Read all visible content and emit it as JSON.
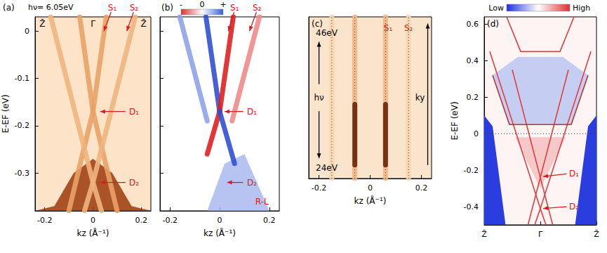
{
  "chart_data": [
    {
      "type": "line",
      "title": "(a)",
      "subtitle": "hν= 6.05eV",
      "xlabel": "kz (Å⁻¹)",
      "ylabel": "E-EF (eV)",
      "xlim": [
        -0.24,
        0.24
      ],
      "xticks": [
        -0.2,
        0,
        0.2
      ],
      "ylim": [
        -0.38,
        0.03
      ],
      "yticks": [
        -0.3,
        -0.2,
        -0.1,
        0
      ],
      "series": [
        {
          "type": "area",
          "x": [
            -0.24,
            -0.16,
            -0.08,
            0,
            0.08,
            0.16,
            0.24
          ],
          "values": [
            -0.38,
            -0.37,
            -0.3,
            -0.27,
            -0.3,
            -0.37,
            -0.38
          ],
          "color": "#9c3a0c"
        },
        {
          "type": "line",
          "x": [
            -0.055,
            0,
            0.1
          ],
          "values": [
            0.03,
            -0.17,
            -0.38
          ],
          "color": "#e9a266",
          "line_style": "broad"
        },
        {
          "type": "line",
          "x": [
            0.055,
            0,
            -0.1
          ],
          "values": [
            0.03,
            -0.17,
            -0.38
          ],
          "color": "#e9a266",
          "line_style": "broad"
        },
        {
          "type": "line",
          "x": [
            -0.175,
            0,
            0.035
          ],
          "values": [
            0.03,
            -0.32,
            -0.38
          ],
          "color": "#eeb47e",
          "line_style": "broad"
        },
        {
          "type": "line",
          "x": [
            0.175,
            0,
            -0.035
          ],
          "values": [
            0.03,
            -0.32,
            -0.38
          ],
          "color": "#eeb47e",
          "line_style": "broad"
        }
      ],
      "annotations": [
        {
          "text": "Z̄",
          "x": -0.21,
          "y": 0.015,
          "color": "#000000"
        },
        {
          "text": "Γ̄",
          "x": 0,
          "y": 0.015,
          "color": "#000000"
        },
        {
          "text": "Z̄",
          "x": 0.21,
          "y": 0.015,
          "color": "#000000"
        },
        {
          "text": "S₁",
          "x": 0.08,
          "y": 0.05,
          "color": "#d42020",
          "arrows": [
            [
              [
                0.075,
                0.04
              ],
              [
                0.045,
                0.0
              ]
            ]
          ]
        },
        {
          "text": "S₂",
          "x": 0.17,
          "y": 0.05,
          "color": "#d42020",
          "arrows": [
            [
              [
                0.168,
                0.04
              ],
              [
                0.14,
                0.0
              ]
            ]
          ]
        },
        {
          "text": "D₁",
          "x": 0.17,
          "y": -0.17,
          "color": "#d42020",
          "arrows": [
            [
              [
                0.135,
                -0.17
              ],
              [
                0.03,
                -0.17
              ]
            ]
          ]
        },
        {
          "text": "D₂",
          "x": 0.17,
          "y": -0.32,
          "color": "#d42020",
          "arrows": [
            [
              [
                0.135,
                -0.32
              ],
              [
                0.03,
                -0.32
              ]
            ]
          ]
        }
      ]
    },
    {
      "type": "line",
      "title": "(b)",
      "xlabel": "kz (Å⁻¹)",
      "xlim": [
        -0.24,
        0.24
      ],
      "xticks": [
        -0.2,
        0,
        0.2
      ],
      "ylim": [
        -0.38,
        0.03
      ],
      "yticks": [
        -0.3,
        -0.2,
        -0.1,
        0
      ],
      "tick_labels": "x",
      "colorbar": {
        "range": [
          -1,
          1
        ],
        "ticks": [
          {
            "value": -1,
            "label": "-"
          },
          0,
          {
            "value": 1,
            "label": "+"
          }
        ],
        "colors": [
          "#e03030",
          "#ffffff",
          "#3060e0"
        ]
      },
      "series": [
        {
          "type": "area",
          "x": [
            -0.05,
            0.02,
            0.1,
            0.2
          ],
          "values": [
            -0.38,
            -0.28,
            -0.26,
            -0.38
          ],
          "color": "#aab8ee"
        },
        {
          "type": "line",
          "x": [
            -0.055,
            0
          ],
          "values": [
            0.03,
            -0.17
          ],
          "color": "#3050d0",
          "line_style": "broad"
        },
        {
          "type": "line",
          "x": [
            0.055,
            0
          ],
          "values": [
            0.03,
            -0.17
          ],
          "color": "#e02020",
          "line_style": "broad"
        },
        {
          "type": "line",
          "x": [
            -0.16,
            -0.05
          ],
          "values": [
            0.03,
            -0.19
          ],
          "color": "#8fa3e8",
          "line_style": "broad"
        },
        {
          "type": "line",
          "x": [
            0.16,
            0.05
          ],
          "values": [
            0.03,
            -0.19
          ],
          "color": "#f08a8a",
          "line_style": "broad"
        },
        {
          "type": "line",
          "x": [
            0,
            -0.05
          ],
          "values": [
            -0.17,
            -0.26
          ],
          "color": "#e02020",
          "line_style": "broad"
        },
        {
          "type": "line",
          "x": [
            0,
            0.06
          ],
          "values": [
            -0.17,
            -0.28
          ],
          "color": "#3050d0",
          "line_style": "broad"
        }
      ],
      "annotations": [
        {
          "text": "S₁",
          "x": 0.06,
          "y": 0.05,
          "color": "#d42020",
          "arrows": [
            [
              [
                0.058,
                0.04
              ],
              [
                0.035,
                0.0
              ]
            ]
          ]
        },
        {
          "text": "S₂",
          "x": 0.15,
          "y": 0.05,
          "color": "#d42020",
          "arrows": [
            [
              [
                0.148,
                0.04
              ],
              [
                0.12,
                0.0
              ]
            ]
          ]
        },
        {
          "text": "D₁",
          "x": 0.13,
          "y": -0.17,
          "color": "#d42020",
          "arrows": [
            [
              [
                0.095,
                -0.17
              ],
              [
                0.02,
                -0.17
              ]
            ]
          ]
        },
        {
          "text": "D₂",
          "x": 0.13,
          "y": -0.32,
          "color": "#d42020",
          "arrows": [
            [
              [
                0.095,
                -0.32
              ],
              [
                0.03,
                -0.32
              ]
            ]
          ]
        },
        {
          "text": "R-L",
          "x": 0.17,
          "y": -0.36,
          "color": "#d42020"
        }
      ]
    },
    {
      "type": "line",
      "title": "(c)",
      "xlabel": "kz (Å⁻¹)",
      "xlim": [
        -0.24,
        0.24
      ],
      "xticks": [
        -0.2,
        0,
        0.2
      ],
      "ylim": [
        23,
        47
      ],
      "tick_labels": "x",
      "series": [
        {
          "type": "line",
          "x": [
            -0.15,
            -0.15
          ],
          "values": [
            23,
            47
          ],
          "color": "#f8d5b0",
          "line_style": "broad"
        },
        {
          "type": "line",
          "x": [
            0.15,
            0.15
          ],
          "values": [
            23,
            47
          ],
          "color": "#f8d5b0",
          "line_style": "broad"
        },
        {
          "type": "line",
          "x": [
            -0.06,
            -0.06
          ],
          "values": [
            23,
            47
          ],
          "color": "#f2b682",
          "line_style": "broad"
        },
        {
          "type": "line",
          "x": [
            0.06,
            0.06
          ],
          "values": [
            23,
            47
          ],
          "color": "#f2b682",
          "line_style": "broad"
        },
        {
          "type": "line",
          "x": [
            -0.06,
            -0.06
          ],
          "values": [
            25,
            34
          ],
          "color": "#6e2408",
          "line_style": "broad"
        },
        {
          "type": "line",
          "x": [
            0.06,
            0.06
          ],
          "values": [
            25,
            34
          ],
          "color": "#6e2408",
          "line_style": "broad"
        },
        {
          "type": "line",
          "x": [
            -0.15,
            -0.15
          ],
          "values": [
            23,
            47
          ],
          "color": "#444444",
          "line_style": "dotted"
        },
        {
          "type": "line",
          "x": [
            -0.06,
            -0.06
          ],
          "values": [
            23,
            47
          ],
          "color": "#444444",
          "line_style": "dotted"
        },
        {
          "type": "line",
          "x": [
            0.06,
            0.06
          ],
          "values": [
            23,
            47
          ],
          "color": "#444444",
          "line_style": "dotted"
        },
        {
          "type": "line",
          "x": [
            0.15,
            0.15
          ],
          "values": [
            23,
            47
          ],
          "color": "#444444",
          "line_style": "dotted"
        }
      ],
      "annotations": [
        {
          "text": "46eV",
          "x": -0.17,
          "y": 44.6,
          "color": "#000000"
        },
        {
          "text": "24eV",
          "x": -0.17,
          "y": 24.6,
          "color": "#000000"
        },
        {
          "text": "hν",
          "x": -0.2,
          "y": 35,
          "color": "#000000",
          "arrows": [
            [
              [
                -0.2,
                37
              ],
              [
                -0.2,
                43.3
              ]
            ],
            [
              [
                -0.2,
                33
              ],
              [
                -0.2,
                26
              ]
            ]
          ]
        },
        {
          "text": "ky",
          "x": 0.195,
          "y": 35,
          "color": "#000000",
          "arrows": [
            [
              [
                0.225,
                25
              ],
              [
                0.225,
                46
              ]
            ]
          ]
        },
        {
          "text": "S₁",
          "x": 0.07,
          "y": 45.3,
          "color": "#d42020"
        },
        {
          "text": "S₂",
          "x": 0.15,
          "y": 45.3,
          "color": "#d42020"
        }
      ]
    },
    {
      "type": "line",
      "title": "(d)",
      "ylabel": "E-EF (eV)",
      "xlim": [
        -1,
        1
      ],
      "xticks": [
        {
          "value": -1,
          "label": "Z̄"
        },
        {
          "value": 0,
          "label": "Γ̄"
        },
        {
          "value": 1,
          "label": "Z̄"
        }
      ],
      "ylim": [
        -0.5,
        0.64
      ],
      "yticks": [
        -0.4,
        -0.2,
        0,
        0.2,
        0.4,
        0.6
      ],
      "colorbar": {
        "range": [
          0,
          1
        ],
        "ticks": [
          {
            "value": 0,
            "label": "Low"
          },
          {
            "value": 1,
            "label": "High"
          }
        ],
        "colors": [
          "#2030e0",
          "#ffffff",
          "#e03030"
        ]
      },
      "series": [
        {
          "type": "polygon",
          "x": [
            -0.85,
            -0.55,
            0.55,
            0.85,
            0.4,
            -0.4
          ],
          "values": [
            0.32,
            0.05,
            0.05,
            0.32,
            0.42,
            0.42
          ],
          "color": "#c5cdf3"
        },
        {
          "type": "polygon",
          "x": [
            -1,
            -0.85,
            -0.62,
            -1
          ],
          "values": [
            0.1,
            0.04,
            -0.5,
            -0.5
          ],
          "color": "#2a3ee0"
        },
        {
          "type": "polygon",
          "x": [
            1,
            0.85,
            0.62,
            1
          ],
          "values": [
            0.1,
            0.04,
            -0.5,
            -0.5
          ],
          "color": "#2a3ee0"
        },
        {
          "type": "polygon",
          "x": [
            -0.45,
            0.45,
            0
          ],
          "values": [
            -0.02,
            -0.02,
            -0.3
          ],
          "color": "#f6c8c8"
        },
        {
          "type": "line",
          "x": [
            -0.5,
            0,
            0.22
          ],
          "values": [
            0.35,
            -0.24,
            -0.5
          ],
          "color": "#e04040",
          "line_style": "solid"
        },
        {
          "type": "line",
          "x": [
            0.5,
            0,
            -0.22
          ],
          "values": [
            0.35,
            -0.24,
            -0.5
          ],
          "color": "#e04040",
          "line_style": "solid"
        },
        {
          "type": "line",
          "x": [
            -0.9,
            0,
            0.1
          ],
          "values": [
            0.45,
            -0.41,
            -0.5
          ],
          "color": "#e04040",
          "line_style": "solid"
        },
        {
          "type": "line",
          "x": [
            0.9,
            0,
            -0.1
          ],
          "values": [
            0.45,
            -0.41,
            -0.5
          ],
          "color": "#e04040",
          "line_style": "solid"
        },
        {
          "type": "line",
          "x": [
            -0.6,
            -0.35,
            0.35,
            0.6
          ],
          "values": [
            0.64,
            0.45,
            0.45,
            0.64
          ],
          "color": "#e04040",
          "line_style": "solid"
        },
        {
          "type": "line",
          "x": [
            -0.85,
            -0.55,
            0.55,
            0.85
          ],
          "values": [
            0.32,
            0.05,
            0.05,
            0.32
          ],
          "color": "#c03030",
          "line_style": "solid"
        },
        {
          "type": "line",
          "x": [
            -1,
            1
          ],
          "values": [
            0,
            0
          ],
          "color": "#333333",
          "line_style": "dotted"
        }
      ],
      "annotations": [
        {
          "text": "D₁",
          "x": 0.6,
          "y": -0.22,
          "color": "#d42020",
          "arrows": [
            [
              [
                0.47,
                -0.22
              ],
              [
                0.05,
                -0.235
              ]
            ]
          ]
        },
        {
          "text": "D₂",
          "x": 0.6,
          "y": -0.4,
          "color": "#d42020",
          "arrows": [
            [
              [
                0.47,
                -0.4
              ],
              [
                0.05,
                -0.41
              ]
            ]
          ]
        }
      ]
    }
  ]
}
